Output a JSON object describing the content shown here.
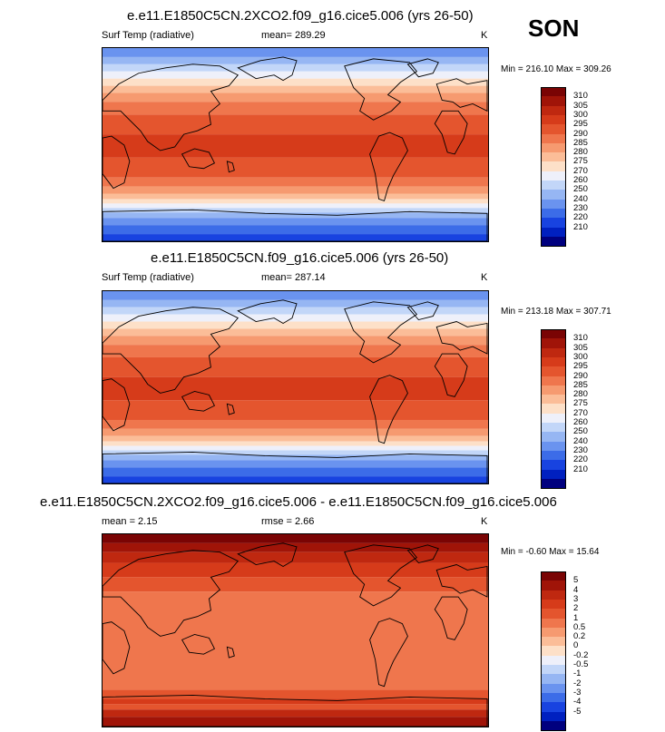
{
  "season": "SON",
  "colors": {
    "abs": [
      "#00007f",
      "#0020c0",
      "#1843e0",
      "#3c6ce8",
      "#6a93ef",
      "#96b6f3",
      "#c2d6f8",
      "#eef0fa",
      "#fde0c8",
      "#fbbd98",
      "#f69a70",
      "#ef764d",
      "#e4552e",
      "#d63b1a",
      "#bf2810",
      "#a01408",
      "#7a0404"
    ],
    "diff": [
      "#00007f",
      "#0020c0",
      "#1843e0",
      "#3c6ce8",
      "#6a93ef",
      "#96b6f3",
      "#c2d6f8",
      "#eef0fa",
      "#fde0c8",
      "#fbbd98",
      "#f69a70",
      "#ef764d",
      "#e4552e",
      "#d63b1a",
      "#bf2810",
      "#a01408",
      "#7a0404"
    ]
  },
  "panels": [
    {
      "title": "e.e11.E1850C5CN.2XCO2.f09_g16.cice5.006 (yrs 26-50)",
      "left_label": "Surf Temp (radiative)",
      "center_label": "mean= 289.29",
      "units": "K",
      "minmax": "Min = 216.10 Max = 309.26",
      "kind": "abs",
      "colorbar_labels": [
        "310",
        "305",
        "300",
        "295",
        "290",
        "285",
        "280",
        "275",
        "270",
        "260",
        "250",
        "240",
        "230",
        "220",
        "210"
      ]
    },
    {
      "title": "e.e11.E1850C5CN.f09_g16.cice5.006 (yrs 26-50)",
      "left_label": "Surf Temp (radiative)",
      "center_label": "mean= 287.14",
      "units": "K",
      "minmax": "Min = 213.18 Max = 307.71",
      "kind": "abs",
      "colorbar_labels": [
        "310",
        "305",
        "300",
        "295",
        "290",
        "285",
        "280",
        "275",
        "270",
        "260",
        "250",
        "240",
        "230",
        "220",
        "210"
      ]
    },
    {
      "title": "e.e11.E1850C5CN.2XCO2.f09_g16.cice5.006 - e.e11.E1850C5CN.f09_g16.cice5.006",
      "left_label": "mean =  2.15",
      "center_label": "rmse =  2.66",
      "units": "K",
      "minmax": "Min = -0.60 Max = 15.64",
      "kind": "diff",
      "colorbar_labels": [
        "5",
        "4",
        "3",
        "2",
        "1",
        "0.5",
        "0.2",
        "0",
        "-0.2",
        "-0.5",
        "-1",
        "-2",
        "-3",
        "-4",
        "-5"
      ]
    }
  ]
}
